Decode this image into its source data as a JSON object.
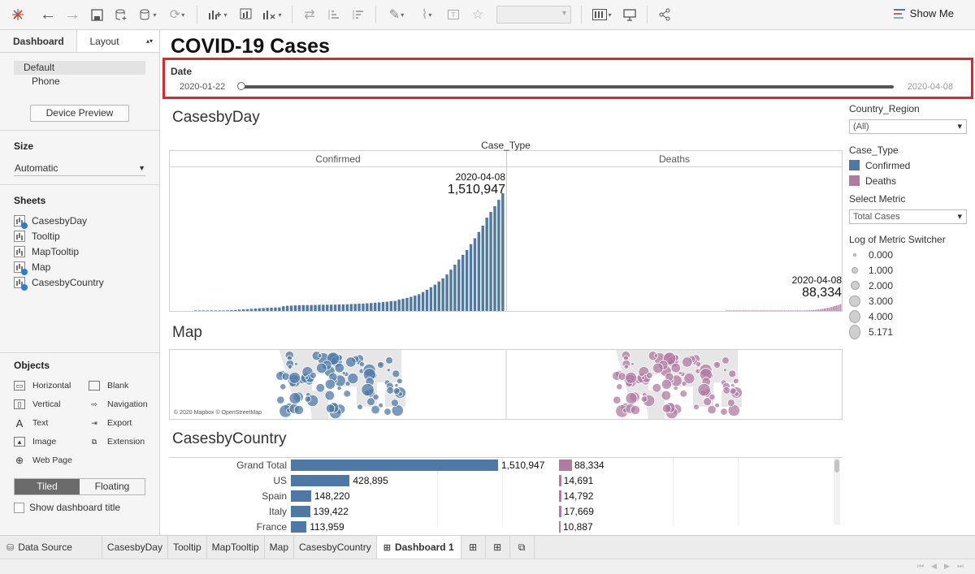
{
  "toolbar": {
    "show_me_label": "Show Me"
  },
  "left_panel": {
    "tabs": {
      "dashboard": "Dashboard",
      "layout": "Layout"
    },
    "devices": [
      "Default",
      "Phone"
    ],
    "device_preview_button": "Device Preview",
    "size_heading": "Size",
    "size_value": "Automatic",
    "sheets_heading": "Sheets",
    "sheets": [
      "CasesbyDay",
      "Tooltip",
      "MapTooltip",
      "Map",
      "CasesbyCountry"
    ],
    "objects_heading": "Objects",
    "objects": [
      {
        "label": "Horizontal",
        "icon": "horizontal-icon"
      },
      {
        "label": "Blank",
        "icon": "blank-icon"
      },
      {
        "label": "Vertical",
        "icon": "vertical-icon"
      },
      {
        "label": "Navigation",
        "icon": "navigation-icon"
      },
      {
        "label": "Text",
        "icon": "text-icon"
      },
      {
        "label": "Export",
        "icon": "export-icon"
      },
      {
        "label": "Image",
        "icon": "image-icon"
      },
      {
        "label": "Extension",
        "icon": "extension-icon"
      },
      {
        "label": "Web Page",
        "icon": "globe-icon"
      }
    ],
    "tiled_label": "Tiled",
    "floating_label": "Floating",
    "show_title_label": "Show dashboard title"
  },
  "dashboard": {
    "title": "COVID-19 Cases",
    "date_filter": {
      "label": "Date",
      "start": "2020-01-22",
      "end": "2020-04-08"
    },
    "cases_by_day_title": "CasesbyDay",
    "case_type_header": "Case_Type",
    "panels": [
      "Confirmed",
      "Deaths"
    ],
    "confirmed_annotation": {
      "date": "2020-04-08",
      "value": "1,510,947"
    },
    "deaths_annotation": {
      "date": "2020-04-08",
      "value": "88,334"
    },
    "map_title": "Map",
    "map_credit": "© 2020 Mapbox © OpenStreetMap",
    "cases_by_country_title": "CasesbyCountry"
  },
  "right_panel": {
    "country_region_title": "Country_Region",
    "country_region_value": "(All)",
    "case_type_title": "Case_Type",
    "case_type_items": [
      {
        "label": "Confirmed",
        "color": "#4e79a7"
      },
      {
        "label": "Deaths",
        "color": "#b07aa1"
      }
    ],
    "select_metric_title": "Select Metric",
    "select_metric_value": "Total Cases",
    "log_switcher_title": "Log of Metric Switcher",
    "size_values": [
      "0.000",
      "1.000",
      "2.000",
      "3.000",
      "4.000",
      "5.171"
    ]
  },
  "chart_data": [
    {
      "type": "bar",
      "title": "CasesbyDay",
      "series": [
        {
          "name": "Confirmed",
          "color": "#4e79a7",
          "last_value": 1510947,
          "values": [
            555,
            653,
            941,
            1434,
            2118,
            2927,
            5578,
            6166,
            8234,
            9927,
            12038,
            16787,
            19881,
            23892,
            27635,
            30794,
            34391,
            37120,
            40150,
            42762,
            44802,
            45221,
            60368,
            66885,
            69030,
            71224,
            73258,
            75136,
            75639,
            76197,
            76819,
            78572,
            78958,
            79561,
            80406,
            81388,
            82746,
            84112,
            86011,
            88369,
            90306,
            92840,
            95120,
            97886,
            101801,
            105847,
            109821,
            113590,
            118620,
            125875,
            128352,
            145205,
            156101,
            167454,
            181574,
            197102,
            214821,
            242570,
            272208,
            304507,
            336953,
            378235,
            418045,
            467653,
            529591,
            593291,
            660706,
            720117,
            782365,
            857487,
            932605,
            1013157,
            1095917,
            1197405,
            1272115,
            1345101,
            1426096,
            1510947
          ]
        },
        {
          "name": "Deaths",
          "color": "#b07aa1",
          "last_value": 88334,
          "values": [
            17,
            18,
            26,
            42,
            56,
            82,
            131,
            133,
            171,
            213,
            259,
            362,
            426,
            492,
            564,
            634,
            719,
            806,
            906,
            1013,
            1113,
            1118,
            1371,
            1523,
            1666,
            1770,
            1868,
            2007,
            2122,
            2247,
            2251,
            2458,
            2469,
            2629,
            2708,
            2770,
            2814,
            2872,
            2941,
            2996,
            3085,
            3160,
            3254,
            3348,
            3460,
            3558,
            3802,
            3988,
            4262,
            4615,
            4720,
            5404,
            5819,
            6440,
            7126,
            7905,
            8733,
            9867,
            11299,
            12973,
            14651,
            16505,
            18625,
            21181,
            23970,
            27198,
            30652,
            33925,
            37582,
            42107,
            46809,
            52983,
            58787,
            64606,
            69374,
            74565,
            81865,
            88334
          ]
        }
      ]
    },
    {
      "type": "bar",
      "title": "CasesbyCountry",
      "categories": [
        "Grand Total",
        "US",
        "Spain",
        "Italy",
        "France"
      ],
      "series": [
        {
          "name": "Confirmed",
          "color": "#4e79a7",
          "values": [
            1510947,
            428895,
            148220,
            139422,
            113959
          ]
        },
        {
          "name": "Deaths",
          "color": "#b07aa1",
          "values": [
            88334,
            14691,
            14792,
            17669,
            10887
          ]
        }
      ],
      "value_labels": {
        "confirmed": [
          "1,510,947",
          "428,895",
          "148,220",
          "139,422",
          "113,959"
        ],
        "deaths": [
          "88,334",
          "14,691",
          "14,792",
          "17,669",
          "10,887"
        ]
      }
    }
  ],
  "bottom_tabs": {
    "data_source": "Data Source",
    "sheets": [
      "CasesbyDay",
      "Tooltip",
      "MapTooltip",
      "Map",
      "CasesbyCountry"
    ],
    "active": "Dashboard 1"
  }
}
